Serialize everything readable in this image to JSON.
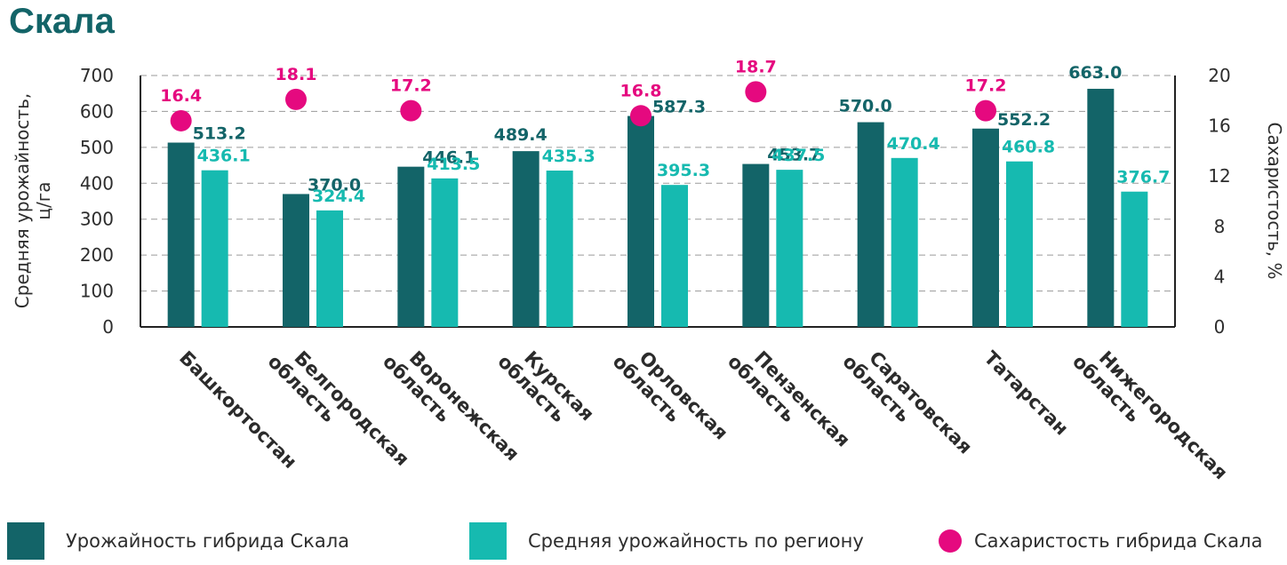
{
  "title": "Скала",
  "colors": {
    "hybrid": "#136468",
    "regional": "#16bab0",
    "sugar": "#e5097f",
    "axis_text": "#2d2d2d"
  },
  "chart_data": {
    "type": "bar",
    "categories": [
      [
        "Башкортостан"
      ],
      [
        "Белгородская",
        "область"
      ],
      [
        "Воронежская",
        "область"
      ],
      [
        "Курская",
        "область"
      ],
      [
        "Орловская",
        "область"
      ],
      [
        "Пензенская",
        "область"
      ],
      [
        "Саратовская",
        "область"
      ],
      [
        "Татарстан"
      ],
      [
        "Нижегородская",
        "область"
      ]
    ],
    "series": [
      {
        "name": "Урожайность гибрида Скала",
        "type": "bar",
        "axis": "left",
        "values": [
          513.2,
          370.0,
          446.1,
          489.4,
          587.3,
          453.7,
          570.0,
          552.2,
          663.0
        ],
        "labels": [
          "513.2",
          "370.0",
          "446.1",
          "489.4",
          "587.3",
          "453.7",
          "570.0",
          "552.2",
          "663.0"
        ]
      },
      {
        "name": "Средняя урожайность по региону",
        "type": "bar",
        "axis": "left",
        "values": [
          436.1,
          324.4,
          413.5,
          435.3,
          395.3,
          437.5,
          470.4,
          460.8,
          376.7
        ],
        "labels": [
          "436.1",
          "324.4",
          "413.5",
          "435.3",
          "395.3",
          "437.5",
          "470.4",
          "460.8",
          "376.7"
        ]
      },
      {
        "name": "Сахаристость гибрида Скала",
        "type": "scatter",
        "axis": "right",
        "values": [
          16.4,
          18.1,
          17.2,
          null,
          16.8,
          18.7,
          null,
          17.2,
          null
        ],
        "labels": [
          "16.4",
          "18.1",
          "17.2",
          "",
          "16.8",
          "18.7",
          "",
          "17.2",
          ""
        ]
      }
    ],
    "ylabel_lines": [
      "Средняя урожайность,",
      "ц/га"
    ],
    "y2label": "Сахаристость, %",
    "ylim": [
      0,
      700
    ],
    "y2lim": [
      0,
      20
    ],
    "yticks": [
      0,
      100,
      200,
      300,
      400,
      500,
      600,
      700
    ],
    "y2ticks": [
      0,
      4,
      8,
      12,
      16,
      20
    ],
    "grid": true,
    "legend_position": "bottom"
  }
}
